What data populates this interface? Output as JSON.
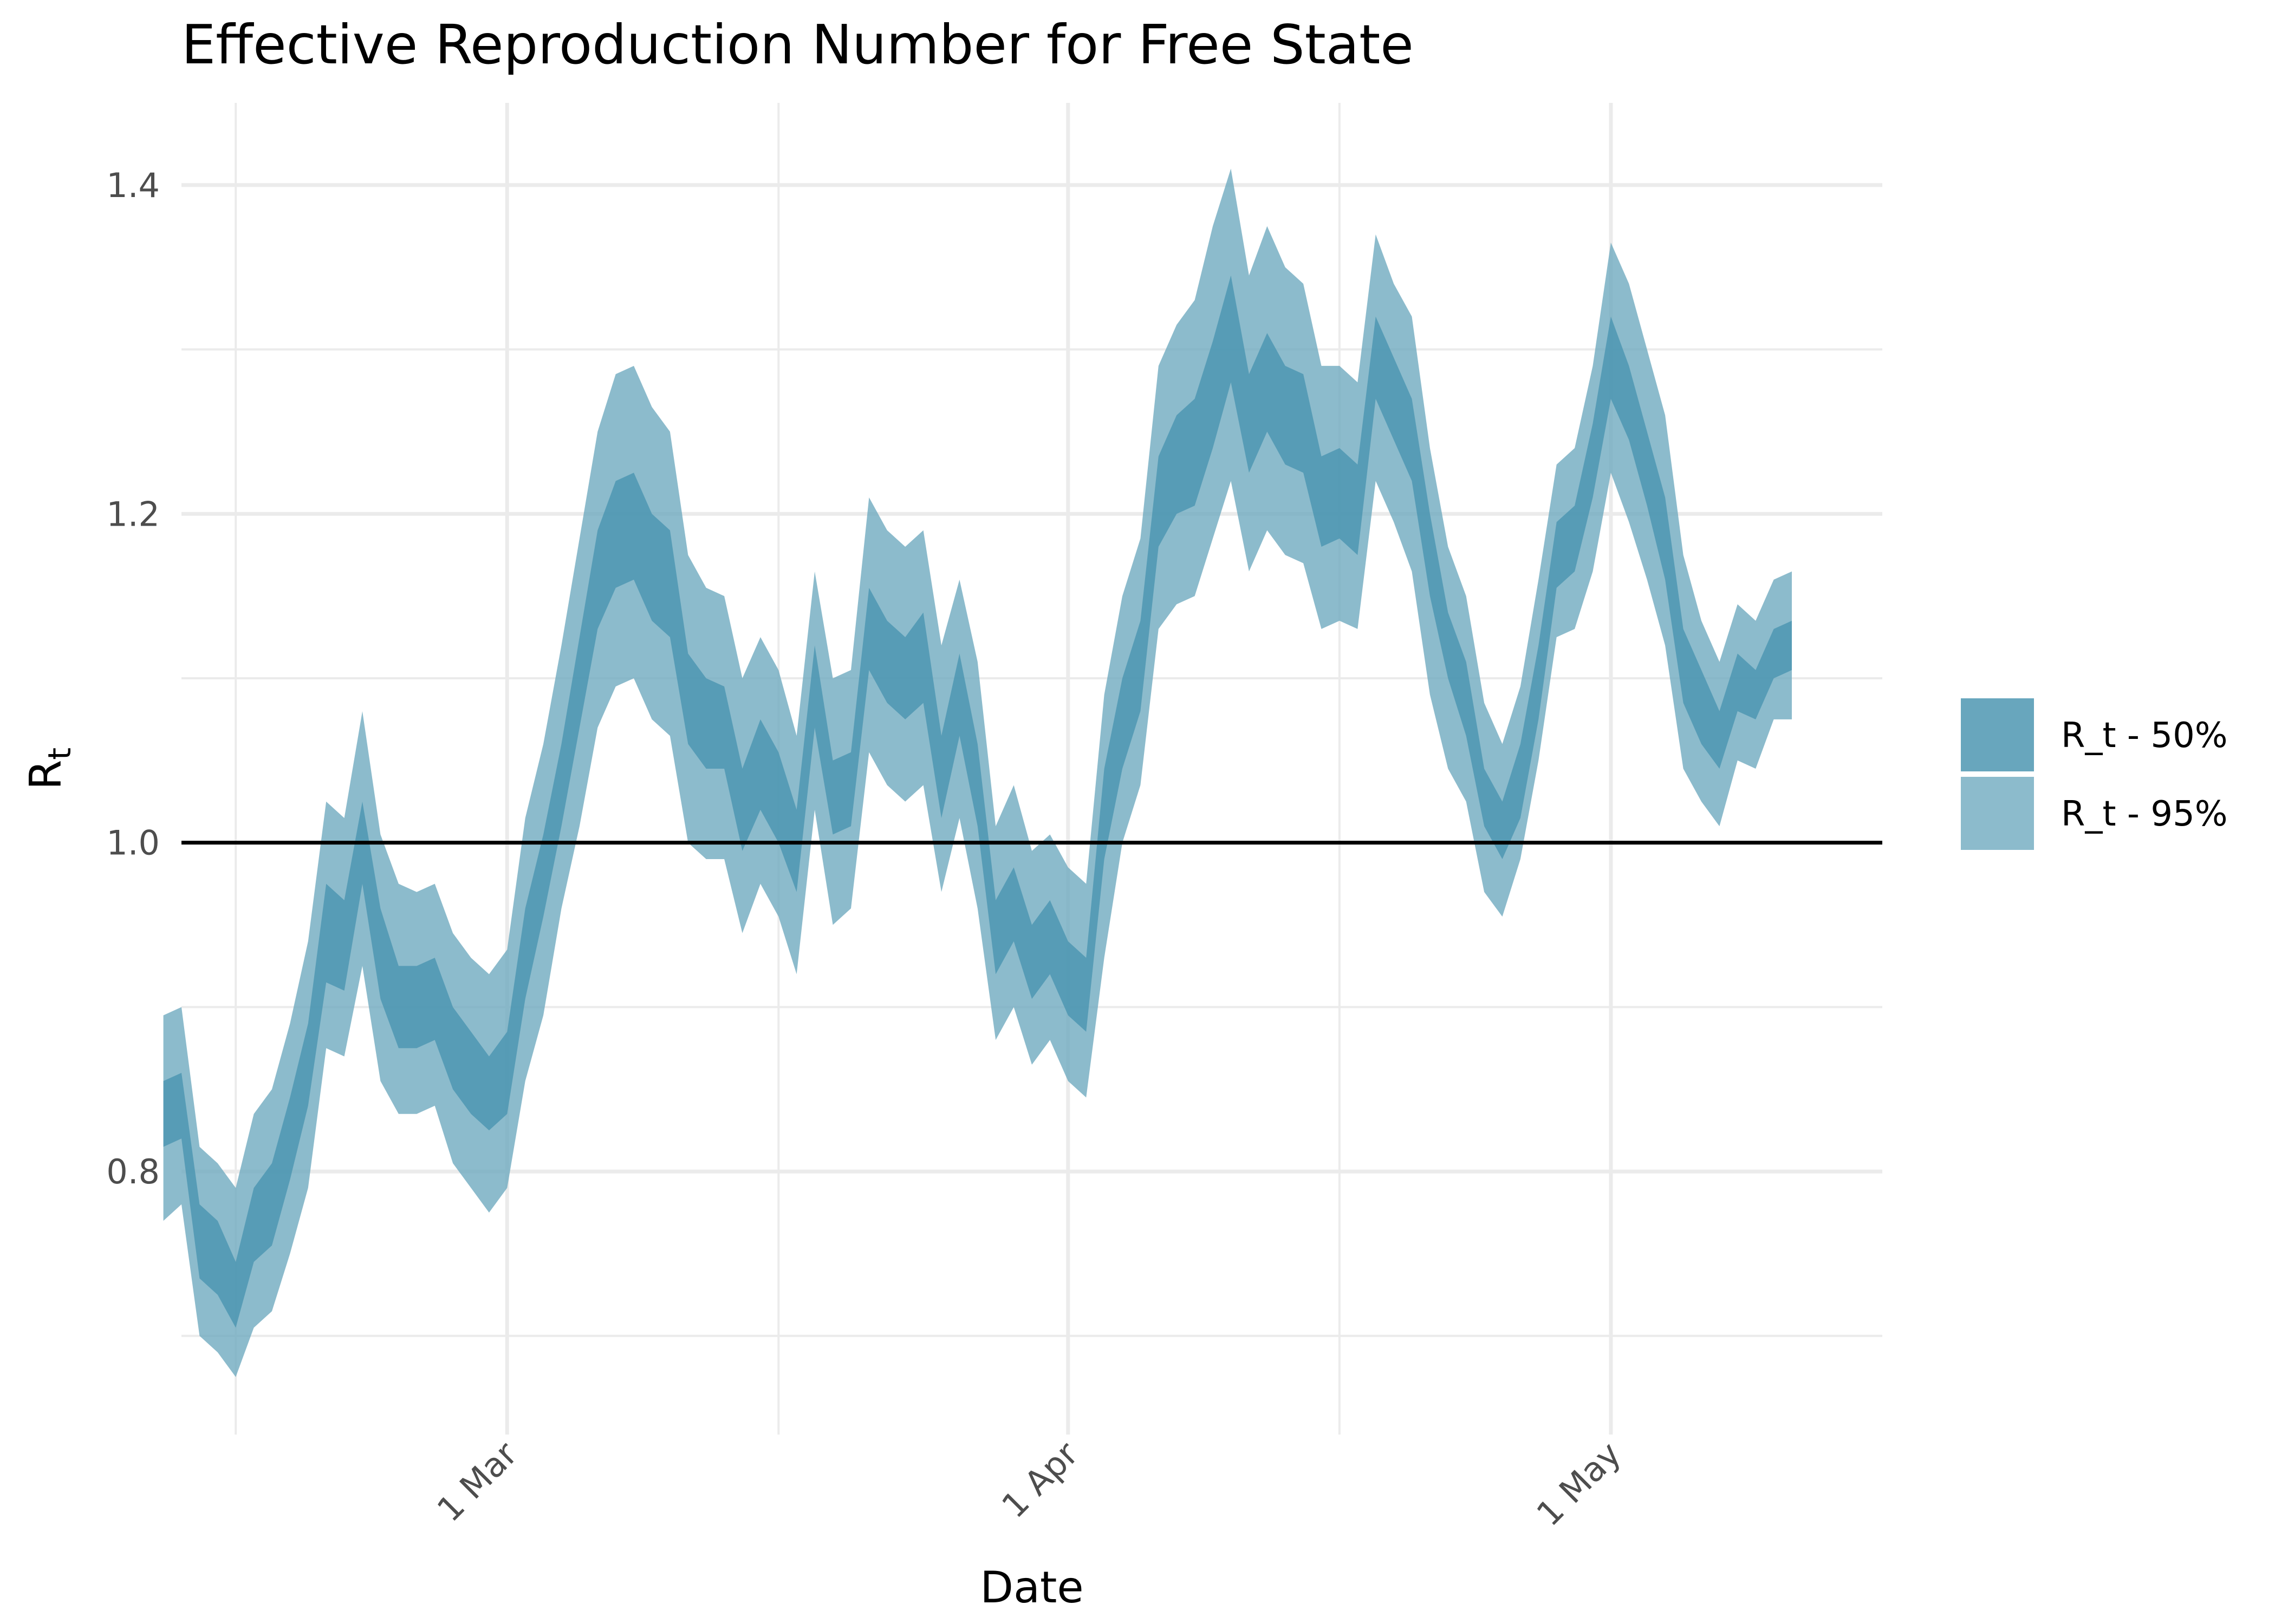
{
  "chart_data": {
    "type": "area",
    "title": "Effective Reproduction Number for Free State",
    "xlabel": "Date",
    "ylabel": "R",
    "ylabel_subscript": "t",
    "ylim": [
      0.64,
      1.45
    ],
    "yticks": [
      0.8,
      1.0,
      1.2,
      1.4
    ],
    "yticks_minor": [
      0.7,
      0.9,
      1.1,
      1.3
    ],
    "xlim": [
      "2020-02-12",
      "2020-05-16"
    ],
    "xticks": [
      {
        "date": "2020-03-01",
        "label": "1 Mar"
      },
      {
        "date": "2020-04-01",
        "label": "1 Apr"
      },
      {
        "date": "2020-05-01",
        "label": "1 May"
      }
    ],
    "xticks_minor": [
      "2020-02-15",
      "2020-03-16",
      "2020-04-16"
    ],
    "reference_line": 1.0,
    "grid": true,
    "legend_position": "right",
    "colors": {
      "band50": "#4d97b1",
      "band95": "#6faabf",
      "reference": "#000000"
    },
    "start_date": "2020-02-11",
    "series": [
      {
        "name": "R_t - 50%",
        "lower": [
          0.815,
          0.82,
          0.735,
          0.725,
          0.705,
          0.745,
          0.755,
          0.795,
          0.84,
          0.915,
          0.91,
          0.975,
          0.905,
          0.875,
          0.875,
          0.88,
          0.85,
          0.835,
          0.825,
          0.835,
          0.905,
          0.955,
          1.01,
          1.07,
          1.13,
          1.155,
          1.16,
          1.135,
          1.125,
          1.06,
          1.045,
          1.045,
          0.995,
          1.02,
          1.0,
          0.97,
          1.07,
          1.005,
          1.01,
          1.105,
          1.085,
          1.075,
          1.085,
          1.015,
          1.065,
          1.01,
          0.92,
          0.94,
          0.905,
          0.92,
          0.895,
          0.885,
          0.99,
          1.045,
          1.08,
          1.18,
          1.2,
          1.205,
          1.24,
          1.28,
          1.225,
          1.25,
          1.23,
          1.225,
          1.18,
          1.185,
          1.175,
          1.27,
          1.245,
          1.22,
          1.15,
          1.1,
          1.065,
          1.01,
          0.99,
          1.015,
          1.075,
          1.155,
          1.165,
          1.21,
          1.27,
          1.245,
          1.205,
          1.16,
          1.085,
          1.06,
          1.045,
          1.08,
          1.075,
          1.1,
          1.105
        ],
        "upper": [
          0.855,
          0.86,
          0.78,
          0.77,
          0.745,
          0.79,
          0.805,
          0.845,
          0.89,
          0.975,
          0.965,
          1.025,
          0.96,
          0.925,
          0.925,
          0.93,
          0.9,
          0.885,
          0.87,
          0.885,
          0.96,
          1.005,
          1.06,
          1.125,
          1.19,
          1.22,
          1.225,
          1.2,
          1.19,
          1.115,
          1.1,
          1.095,
          1.045,
          1.075,
          1.055,
          1.02,
          1.12,
          1.05,
          1.055,
          1.155,
          1.135,
          1.125,
          1.14,
          1.065,
          1.115,
          1.06,
          0.965,
          0.985,
          0.95,
          0.965,
          0.94,
          0.93,
          1.045,
          1.1,
          1.135,
          1.235,
          1.26,
          1.27,
          1.305,
          1.345,
          1.285,
          1.31,
          1.29,
          1.285,
          1.235,
          1.24,
          1.23,
          1.32,
          1.295,
          1.27,
          1.2,
          1.14,
          1.11,
          1.045,
          1.025,
          1.06,
          1.12,
          1.195,
          1.205,
          1.255,
          1.32,
          1.29,
          1.25,
          1.21,
          1.13,
          1.105,
          1.08,
          1.115,
          1.105,
          1.13,
          1.135
        ]
      },
      {
        "name": "R_t - 95%",
        "lower": [
          0.77,
          0.78,
          0.7,
          0.69,
          0.675,
          0.705,
          0.715,
          0.75,
          0.79,
          0.875,
          0.87,
          0.925,
          0.855,
          0.835,
          0.835,
          0.84,
          0.805,
          0.79,
          0.775,
          0.79,
          0.855,
          0.895,
          0.96,
          1.01,
          1.07,
          1.095,
          1.1,
          1.075,
          1.065,
          1.0,
          0.99,
          0.99,
          0.945,
          0.975,
          0.955,
          0.92,
          1.02,
          0.95,
          0.96,
          1.055,
          1.035,
          1.025,
          1.035,
          0.97,
          1.015,
          0.96,
          0.88,
          0.9,
          0.865,
          0.88,
          0.855,
          0.845,
          0.93,
          1.0,
          1.035,
          1.13,
          1.145,
          1.15,
          1.185,
          1.22,
          1.165,
          1.19,
          1.175,
          1.17,
          1.13,
          1.135,
          1.13,
          1.22,
          1.195,
          1.165,
          1.09,
          1.045,
          1.025,
          0.97,
          0.955,
          0.99,
          1.05,
          1.125,
          1.13,
          1.165,
          1.225,
          1.195,
          1.16,
          1.12,
          1.045,
          1.025,
          1.01,
          1.05,
          1.045,
          1.075,
          1.075
        ],
        "upper": [
          0.895,
          0.9,
          0.815,
          0.805,
          0.79,
          0.835,
          0.85,
          0.89,
          0.94,
          1.025,
          1.015,
          1.08,
          1.005,
          0.975,
          0.97,
          0.975,
          0.945,
          0.93,
          0.92,
          0.935,
          1.015,
          1.06,
          1.12,
          1.185,
          1.25,
          1.285,
          1.29,
          1.265,
          1.25,
          1.175,
          1.155,
          1.15,
          1.1,
          1.125,
          1.105,
          1.065,
          1.165,
          1.1,
          1.105,
          1.21,
          1.19,
          1.18,
          1.19,
          1.12,
          1.16,
          1.11,
          1.01,
          1.035,
          0.995,
          1.005,
          0.985,
          0.975,
          1.09,
          1.15,
          1.185,
          1.29,
          1.315,
          1.33,
          1.375,
          1.41,
          1.345,
          1.375,
          1.35,
          1.34,
          1.29,
          1.29,
          1.28,
          1.37,
          1.34,
          1.32,
          1.24,
          1.18,
          1.15,
          1.085,
          1.06,
          1.095,
          1.16,
          1.23,
          1.24,
          1.29,
          1.365,
          1.34,
          1.3,
          1.26,
          1.175,
          1.135,
          1.11,
          1.145,
          1.135,
          1.16,
          1.165
        ]
      }
    ]
  }
}
